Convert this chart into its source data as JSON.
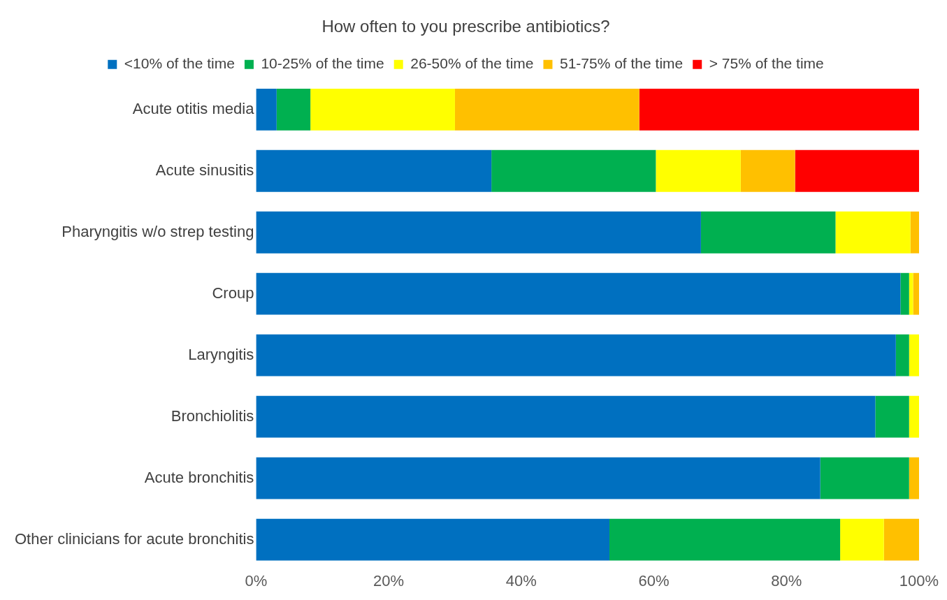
{
  "chart_data": {
    "type": "bar",
    "orientation": "horizontal",
    "stacked": true,
    "title": "How often to you prescribe antibiotics?",
    "categories": [
      "Acute otitis media",
      "Acute sinusitis",
      "Pharyngitis w/o strep testing",
      "Croup",
      "Laryngitis",
      "Bronchiolitis",
      "Acute bronchitis",
      "Other clinicians for acute bronchitis"
    ],
    "series": [
      {
        "name": "<10% of the time",
        "color": "#0070c0",
        "values": [
          3.1,
          35.5,
          67.1,
          97.2,
          96.5,
          93.4,
          85.1,
          53.3
        ]
      },
      {
        "name": "10-25% of the time",
        "color": "#00b050",
        "values": [
          5.1,
          24.8,
          20.3,
          1.3,
          2.0,
          5.1,
          13.4,
          34.8
        ]
      },
      {
        "name": "26-50% of the time",
        "color": "#ffff00",
        "values": [
          21.8,
          12.8,
          11.3,
          0.6,
          1.5,
          1.5,
          0,
          6.6
        ]
      },
      {
        "name": "51-75% of the time",
        "color": "#ffc000",
        "values": [
          27.8,
          8.2,
          1.3,
          0.9,
          0,
          0,
          1.5,
          5.3
        ]
      },
      {
        "name": "> 75% of the time",
        "color": "#ff0000",
        "values": [
          42.2,
          18.7,
          0,
          0,
          0,
          0,
          0,
          0
        ]
      }
    ],
    "xlim": [
      0,
      100
    ],
    "xticks": [
      {
        "value": 0,
        "label": "0%"
      },
      {
        "value": 20,
        "label": "20%"
      },
      {
        "value": 40,
        "label": "40%"
      },
      {
        "value": 60,
        "label": "60%"
      },
      {
        "value": 80,
        "label": "80%"
      },
      {
        "value": 100,
        "label": "100%"
      }
    ],
    "grid": false,
    "legend": "top"
  }
}
